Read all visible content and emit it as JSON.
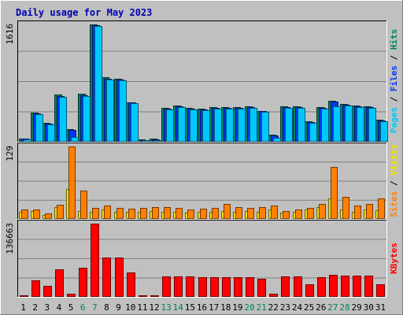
{
  "chart_data": [
    {
      "type": "bar",
      "panel": "pages-files-hits",
      "title": "Daily usage for May 2023",
      "ylabel_parts": [
        {
          "text": "Pages",
          "color": "#00c8ff"
        },
        {
          "text": " / ",
          "color": "#000000"
        },
        {
          "text": "Files",
          "color": "#0038f0"
        },
        {
          "text": " / ",
          "color": "#000000"
        },
        {
          "text": "Hits",
          "color": "#00805c"
        }
      ],
      "ymax_label": "1616",
      "ylim": [
        0,
        1616
      ],
      "grid": true,
      "categories": [
        "1",
        "2",
        "3",
        "4",
        "5",
        "6",
        "7",
        "8",
        "9",
        "10",
        "11",
        "12",
        "13",
        "14",
        "15",
        "16",
        "17",
        "18",
        "19",
        "20",
        "21",
        "22",
        "23",
        "24",
        "25",
        "26",
        "27",
        "28",
        "29",
        "30",
        "31"
      ],
      "weekend_days": [
        6,
        7,
        13,
        14,
        20,
        21,
        27,
        28
      ],
      "series": [
        {
          "name": "Hits",
          "color": "#00805c",
          "values": [
            30,
            390,
            250,
            640,
            160,
            650,
            1616,
            880,
            860,
            540,
            20,
            30,
            460,
            490,
            460,
            450,
            470,
            470,
            470,
            480,
            420,
            90,
            480,
            480,
            270,
            470,
            560,
            510,
            490,
            480,
            290
          ]
        },
        {
          "name": "Files",
          "color": "#0038f0",
          "values": [
            30,
            380,
            240,
            620,
            150,
            630,
            1600,
            860,
            850,
            530,
            15,
            20,
            450,
            480,
            450,
            440,
            460,
            460,
            460,
            470,
            410,
            80,
            470,
            470,
            260,
            460,
            550,
            500,
            480,
            470,
            280
          ]
        },
        {
          "name": "Pages",
          "color": "#00c8ff",
          "values": [
            20,
            370,
            230,
            610,
            60,
            620,
            1590,
            850,
            840,
            520,
            5,
            10,
            440,
            470,
            440,
            430,
            450,
            450,
            450,
            460,
            400,
            40,
            460,
            460,
            250,
            450,
            480,
            490,
            470,
            460,
            270
          ]
        }
      ]
    },
    {
      "type": "bar",
      "panel": "sites-visits",
      "ylabel_parts": [
        {
          "text": "Sites",
          "color": "#ff8000"
        },
        {
          "text": " / ",
          "color": "#000000"
        },
        {
          "text": "Visits",
          "color": "#f0e000"
        }
      ],
      "ymax_label": "129",
      "ylim": [
        0,
        129
      ],
      "grid": true,
      "categories": [
        "1",
        "2",
        "3",
        "4",
        "5",
        "6",
        "7",
        "8",
        "9",
        "10",
        "11",
        "12",
        "13",
        "14",
        "15",
        "16",
        "17",
        "18",
        "19",
        "20",
        "21",
        "22",
        "23",
        "24",
        "25",
        "26",
        "27",
        "28",
        "29",
        "30",
        "31"
      ],
      "series": [
        {
          "name": "Visits",
          "color": "#f0e000",
          "values": [
            12,
            13,
            5,
            20,
            52,
            13,
            11,
            16,
            11,
            12,
            12,
            13,
            12,
            12,
            10,
            12,
            12,
            13,
            12,
            13,
            12,
            15,
            10,
            12,
            16,
            20,
            36,
            16,
            12,
            15,
            14
          ]
        },
        {
          "name": "Sites",
          "color": "#ff8000",
          "values": [
            15,
            15,
            8,
            24,
            129,
            49,
            18,
            23,
            19,
            17,
            19,
            20,
            20,
            19,
            16,
            17,
            19,
            26,
            20,
            18,
            20,
            23,
            13,
            15,
            18,
            26,
            92,
            38,
            23,
            26,
            35
          ]
        }
      ]
    },
    {
      "type": "bar",
      "panel": "kbytes",
      "ylabel_parts": [
        {
          "text": "KBytes",
          "color": "#ff0000"
        }
      ],
      "ymax_label": "136663",
      "ylim": [
        0,
        136663
      ],
      "grid": true,
      "categories": [
        "1",
        "2",
        "3",
        "4",
        "5",
        "6",
        "7",
        "8",
        "9",
        "10",
        "11",
        "12",
        "13",
        "14",
        "15",
        "16",
        "17",
        "18",
        "19",
        "20",
        "21",
        "22",
        "23",
        "24",
        "25",
        "26",
        "27",
        "28",
        "29",
        "30",
        "31"
      ],
      "series": [
        {
          "name": "KBytes",
          "color": "#ff0000",
          "values": [
            500,
            30000,
            20000,
            51000,
            5000,
            53000,
            136663,
            73000,
            73000,
            44000,
            500,
            600,
            37000,
            37000,
            37000,
            36000,
            36000,
            36000,
            36000,
            36000,
            33000,
            5000,
            37000,
            37000,
            22000,
            36000,
            40000,
            39000,
            38000,
            38000,
            23000
          ]
        }
      ]
    }
  ]
}
